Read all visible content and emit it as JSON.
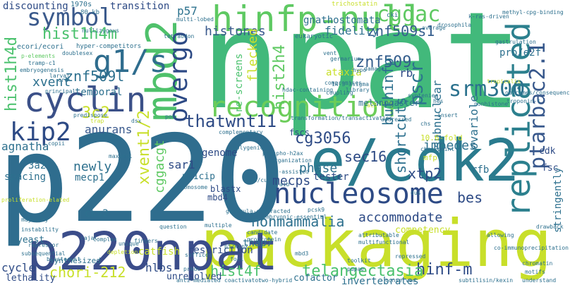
{
  "wordcloud": {
    "big": {
      "npat": "npat",
      "p220": "p220",
      "packaging": "packaging",
      "ecdk2": "e/cdk2",
      "p220npat": "p220npat",
      "hinfp_null": "hinfp-null",
      "mbd2": "mbd2",
      "nucleosome": "nucleosome",
      "replicated": "replicated",
      "recognition": "recognition",
      "cyclin": "cyclin",
      "g1s": "g1/s",
      "symbol": "symbol",
      "kip2": "kip2",
      "overgo": "overgo",
      "srm300": "srm300",
      "ptarbac2": "ptarbac2.1",
      "pscr": "pscr"
    },
    "mid": {
      "hist1h4m": "hist1h4m",
      "hist1h4d": "hist1h4d",
      "xvent": "xvent",
      "znf509l": "znf509l",
      "histones": "histones",
      "hist2h4": "hist2h4",
      "znf509s1": "znf509s1",
      "znf509": "znf509",
      "fidelity": "fidelity",
      "cggac": "cggac",
      "p57": "p57",
      "three_c2": "3c2",
      "anurans": "anurans",
      "thatwnt11": "thatwnt11",
      "flecked": "flecked",
      "re_screens": "re-screens",
      "buthinfp": "buthinfp",
      "shortcuts": "shortcuts",
      "subnuclear": "subnuclear",
      "cg3056": "cg3056",
      "sec16": "sec16",
      "impedes": "impedes",
      "phase": "phase",
      "mecps": "mecps",
      "xtp2": "xtp2",
      "bes": "bes",
      "accommodate": "accommodate",
      "nonmammalia": "nonmammalia",
      "newly": "newly",
      "mecp1": "mecp1",
      "sar1": "sar1",
      "p21cip": "p21cip",
      "xvent12": "xvent1/2",
      "cggacgt": "cggacgt",
      "agnatha": "agnatha",
      "three_a2": "3a2",
      "cks2": "cks2",
      "chori_212": "chori-212",
      "hist4f": "hist4f",
      "hinf_m": "hinf-m",
      "telangectasia": "telangectasia",
      "invertebrates": "invertebrates",
      "thap7": "thap7",
      "cycle": "cycle",
      "hlbs": "hlbs",
      "unresolved": "unresolved",
      "restriction": "restriction",
      "catfish": "catfish",
      "genome": "genome",
      "spacing": "spacing",
      "ovariole": "ovariole",
      "rfb": "rfb",
      "rb": "rb",
      "stringently": "stringently",
      "prb_e2f": "prb/e2f",
      "temporal": "temporal",
      "discounting": "discounting",
      "transition": "transition",
      "gnathostomata": "gnathostomata",
      "ataxia": "ataxia",
      "melanogaster": "melanogaster",
      "competency": "competency",
      "tester": "tester",
      "lethality": "lethality",
      "yeast": "yeast",
      "cofactor": "cofactor",
      "mbd4": "mbd4",
      "blastx": "blastx",
      "fscs": "fscs",
      "ten_fold": "10.6-fold",
      "cdk": "cdk",
      "fsc": "fsc",
      "mfp": "mfp",
      "synthesized": "synthesized"
    },
    "small": {
      "w1970s": "1970s",
      "fine": "80-kb",
      "trichostatin": "trichostatin",
      "cki": "cki",
      "k_ras": "k-ras-driven",
      "methyl": "methyl-cpg-binding",
      "drosophila": "drosophila",
      "gastrulation": "gastrulation",
      "hyper": "hyper-competitors",
      "ecori": "ecori/ecori",
      "tetraodon": "tetraodon",
      "eukaryotic": "eukaryotic",
      "p_elements": "p-elements",
      "embryogenesis": "embryogenesis",
      "larval": "larval",
      "crd": "crd",
      "principal": "principal",
      "germarium": "germarium",
      "damage": "damage",
      "vent": "vent",
      "hypo": "hypo",
      "compromises": "compromises",
      "coupling": "coupling",
      "library": "library",
      "hdac": "hdac-containing",
      "phylo": "phylogenetically",
      "transformation": "transformation/transactivation",
      "addressed": "addressed",
      "predispose": "predispose",
      "trap": "trap",
      "dsx": "dsx",
      "pok": "pok",
      "complementary": "complementary",
      "copii": "copii",
      "maximal": "maximal",
      "chromosome": "chromosome",
      "phospho": "phospho-h2ax",
      "organization": "organization",
      "pcr": "pcr-assisted",
      "checkpoint": "checkpoint",
      "majority": "majority",
      "instability": "instability",
      "repressor": "repressor",
      "fingers": "fingers",
      "question": "question",
      "candidate": "candidate",
      "proprotein": "proprotein",
      "embryonic": "embryonic-essential",
      "pcsk9": "pcsk9",
      "attributable": "attributable",
      "multifunctional": "multifunctional",
      "depletion": "depletion",
      "suffices": "suffices",
      "multiple": "multiple",
      "p57kip2": "p57kip2",
      "mbd3": "mbd3",
      "toolkit": "toolkit",
      "pupae": "pupae",
      "repressed": "repressed",
      "blastocyst": "blastocyst",
      "prkdc": "prkdc",
      "cajal": "cajal",
      "foci": "foci",
      "complex": "complex",
      "unique": "unique",
      "anti_mediated": "anti-mediated",
      "coactivator": "coactivator",
      "two_hybrid": "two-hybrid",
      "conserved": "conserved",
      "subtilisin": "subtilisin/kexin",
      "understand": "understand",
      "motifs": "motifs",
      "chromatin": "chromatin",
      "co_immuno": "co-immunoprecipitation",
      "doublesex": "doublesex",
      "average": "average",
      "multi_lobed": "multi-lobed",
      "syntenies": "syntenies",
      "insert": "insert",
      "troponin": "troponin-t",
      "outcomes": "outcomes/consequences",
      "nonhistone": "nonhistone",
      "tropicalis": "tropicalis",
      "nullizygous": "nullizygous",
      "tramp": "tramp-c1",
      "proliferation": "proliferation-elated",
      "subsequential": "subsequential",
      "hes": "hes",
      "allowing": "allowing",
      "drawback": "drawback",
      "two_hybrid_b": "14-3-3sigma",
      "gastrula": "gastrula-subtracted",
      "aib": "aib",
      "cdp": "cdp/cut",
      "polygenic": "polygenic",
      "chs": "chs",
      "dus": "dus",
      "ac5": "ac5"
    }
  }
}
